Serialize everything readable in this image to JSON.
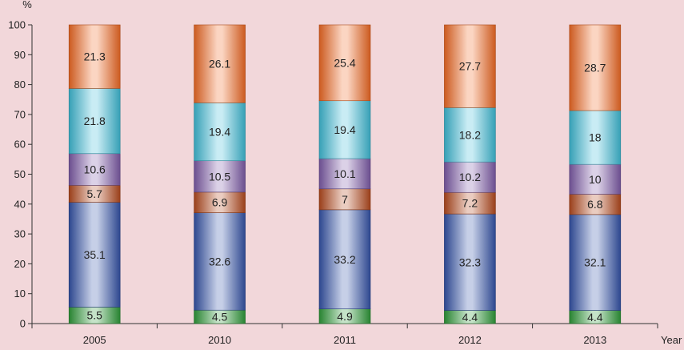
{
  "chart_data": {
    "type": "bar",
    "stacked": true,
    "categories": [
      "2005",
      "2010",
      "2011",
      "2012",
      "2013"
    ],
    "series": [
      {
        "values": [
          5.5,
          4.5,
          4.9,
          4.4,
          4.4
        ],
        "color": "#2f9a3a"
      },
      {
        "values": [
          35.1,
          32.6,
          33.2,
          32.3,
          32.1
        ],
        "color": "#3554a8"
      },
      {
        "values": [
          5.7,
          6.9,
          7,
          7.2,
          6.8
        ],
        "color": "#b54a1e"
      },
      {
        "values": [
          10.6,
          10.5,
          10.1,
          10.2,
          10
        ],
        "color": "#7e5ca8"
      },
      {
        "values": [
          21.8,
          19.4,
          19.4,
          18.2,
          18
        ],
        "color": "#3fbcd6"
      },
      {
        "values": [
          21.3,
          26.1,
          25.4,
          27.7,
          28.7
        ],
        "color": "#f06a25"
      }
    ],
    "ylabel": "%",
    "xlabel": "Year",
    "ylim": [
      0,
      100
    ],
    "yticks": [
      0,
      10,
      20,
      30,
      40,
      50,
      60,
      70,
      80,
      90,
      100
    ],
    "grid": false,
    "legend": "none"
  }
}
